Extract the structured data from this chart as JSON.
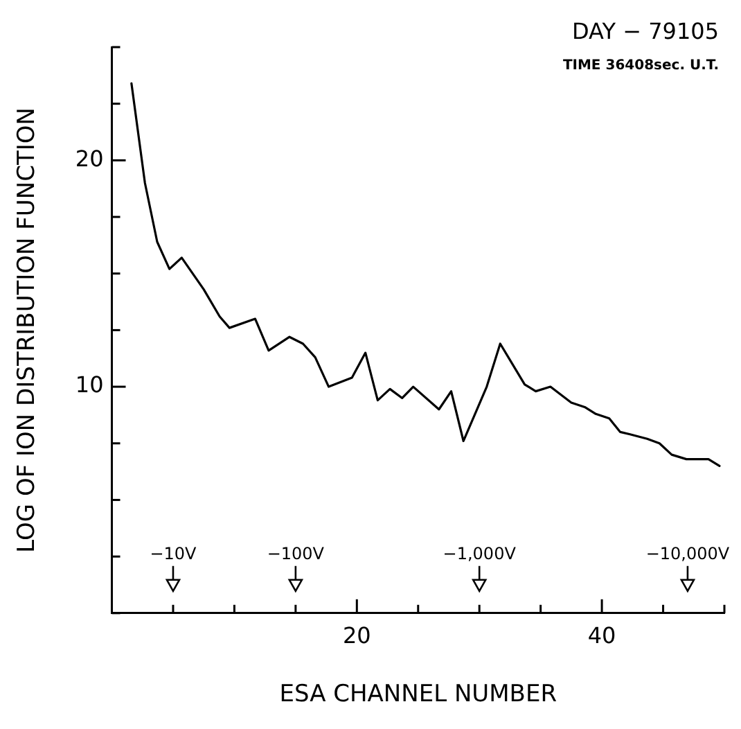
{
  "chart_data": {
    "type": "line",
    "xlabel": "ESA CHANNEL NUMBER",
    "ylabel": "LOG OF ION DISTRIBUTION FUNCTION",
    "x": [
      1.6,
      2.7,
      3.7,
      4.7,
      5.7,
      7.5,
      8.8,
      9.6,
      11.7,
      12.8,
      14.5,
      15.6,
      16.6,
      17.7,
      19.6,
      20.7,
      21.7,
      22.7,
      23.7,
      24.6,
      26.7,
      27.7,
      28.7,
      30.6,
      31.7,
      33.7,
      34.6,
      35.8,
      37.5,
      38.6,
      39.5,
      40.6,
      41.5,
      42.3,
      43.7,
      44.7,
      45.7,
      46.9,
      48.7,
      49.6
    ],
    "series": [
      {
        "color": "#000000",
        "values": [
          23.4,
          19.0,
          16.4,
          15.2,
          15.7,
          14.3,
          13.1,
          12.6,
          13.0,
          11.6,
          12.2,
          11.9,
          11.3,
          10.0,
          10.4,
          11.5,
          9.4,
          9.9,
          9.5,
          10.0,
          9.0,
          9.8,
          7.6,
          10.0,
          11.9,
          10.1,
          9.8,
          10.0,
          9.3,
          9.1,
          8.8,
          8.6,
          8.0,
          7.9,
          7.7,
          7.5,
          7.0,
          6.8,
          6.8,
          6.5
        ]
      }
    ],
    "xlim": [
      0,
      50
    ],
    "ylim": [
      0,
      25
    ],
    "xticks": [
      {
        "value": 0,
        "label": null
      },
      {
        "value": 5,
        "label": null
      },
      {
        "value": 10,
        "label": null
      },
      {
        "value": 15,
        "label": null
      },
      20,
      {
        "value": 25,
        "label": null
      },
      {
        "value": 30,
        "label": null
      },
      {
        "value": 35,
        "label": null
      },
      40,
      {
        "value": 45,
        "label": null
      },
      {
        "value": 50,
        "label": null
      }
    ],
    "yticks": [
      {
        "value": 0,
        "label": null
      },
      {
        "value": 2.5,
        "label": null
      },
      {
        "value": 5,
        "label": null
      },
      {
        "value": 7.5,
        "label": null
      },
      10,
      {
        "value": 12.5,
        "label": null
      },
      {
        "value": 15,
        "label": null
      },
      {
        "value": 17.5,
        "label": null
      },
      20,
      {
        "value": 22.5,
        "label": null
      },
      {
        "value": 25,
        "label": null
      }
    ],
    "grid": false,
    "legend": false,
    "marker": "none",
    "line_style": "solid",
    "annotations": [
      "DAY − 79105",
      "TIME 36408sec. U.T."
    ],
    "ref_lines": [
      {
        "axis": "x",
        "value": 5,
        "label": "−10V"
      },
      {
        "axis": "x",
        "value": 15,
        "label": "−100V"
      },
      {
        "axis": "x",
        "value": 30,
        "label": "−1,000V"
      },
      {
        "axis": "x",
        "value": 47,
        "label": "−10,000V"
      }
    ]
  }
}
